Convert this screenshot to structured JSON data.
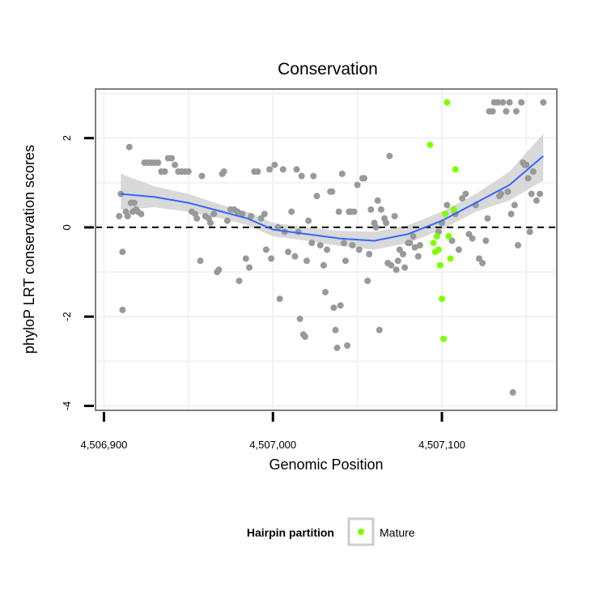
{
  "chart_data": {
    "type": "scatter",
    "title": "Conservation",
    "xlabel": "Genomic Position",
    "ylabel": "phyloP LRT conservation scores",
    "xlim": [
      4506895,
      4507168
    ],
    "ylim": [
      -4.1,
      3.1
    ],
    "x_ticks": [
      4506900,
      4507000,
      4507100
    ],
    "x_tick_labels": [
      "4,506,900",
      "4,507,000",
      "4,507,100"
    ],
    "y_ticks": [
      2,
      0,
      -2,
      -4
    ],
    "y_tick_labels": [
      "2",
      "0",
      "-2",
      "-4"
    ],
    "grid": true,
    "reference_line": {
      "y": 0,
      "style": "dashed",
      "color": "#000000"
    },
    "legend": {
      "title": "Hairpin partition",
      "placement": "bottom",
      "entries": [
        {
          "label": "Mature",
          "color": "#7fff00"
        }
      ]
    },
    "colors": {
      "background_points": "#999999",
      "mature": "#7fff00",
      "smooth": "#3366ff",
      "ribbon": "#cccccc"
    },
    "series": [
      {
        "color": "#999999",
        "points": [
          [
            4506910,
            0.75
          ],
          [
            4506911,
            -1.85
          ],
          [
            4506911,
            -0.55
          ],
          [
            4506909,
            0.25
          ],
          [
            4506913,
            0.35
          ],
          [
            4506914,
            0.25
          ],
          [
            4506915,
            1.8
          ],
          [
            4506916,
            0.55
          ],
          [
            4506917,
            0.35
          ],
          [
            4506918,
            0.55
          ],
          [
            4506919,
            0.4
          ],
          [
            4506920,
            0.35
          ],
          [
            4506922,
            0.3
          ],
          [
            4506924,
            1.45
          ],
          [
            4506926,
            1.45
          ],
          [
            4506928,
            1.45
          ],
          [
            4506930,
            1.45
          ],
          [
            4506932,
            1.45
          ],
          [
            4506934,
            1.25
          ],
          [
            4506936,
            1.25
          ],
          [
            4506938,
            1.55
          ],
          [
            4506940,
            1.55
          ],
          [
            4506942,
            1.4
          ],
          [
            4506944,
            1.25
          ],
          [
            4506946,
            1.25
          ],
          [
            4506948,
            1.25
          ],
          [
            4506950,
            1.25
          ],
          [
            4506952,
            0.35
          ],
          [
            4506954,
            0.3
          ],
          [
            4506955,
            0.2
          ],
          [
            4506957,
            -0.75
          ],
          [
            4506958,
            1.15
          ],
          [
            4506960,
            0.25
          ],
          [
            4506962,
            0.2
          ],
          [
            4506963,
            0.1
          ],
          [
            4506965,
            0.3
          ],
          [
            4506967,
            -1.0
          ],
          [
            4506968,
            -0.95
          ],
          [
            4506970,
            1.2
          ],
          [
            4506971,
            1.25
          ],
          [
            4506973,
            0.15
          ],
          [
            4506975,
            0.4
          ],
          [
            4506977,
            0.4
          ],
          [
            4506979,
            0.35
          ],
          [
            4506980,
            -1.2
          ],
          [
            4506982,
            0.3
          ],
          [
            4506984,
            -0.7
          ],
          [
            4506986,
            -0.9
          ],
          [
            4506987,
            0.25
          ],
          [
            4506989,
            1.25
          ],
          [
            4506991,
            1.25
          ],
          [
            4506993,
            0.2
          ],
          [
            4506995,
            0.3
          ],
          [
            4506996,
            -0.5
          ],
          [
            4506998,
            1.3
          ],
          [
            4506999,
            -0.7
          ],
          [
            4507001,
            1.4
          ],
          [
            4507003,
            0.0
          ],
          [
            4507004,
            -1.6
          ],
          [
            4507006,
            1.3
          ],
          [
            4507007,
            -0.1
          ],
          [
            4507009,
            -0.55
          ],
          [
            4507011,
            0.35
          ],
          [
            4507013,
            -0.65
          ],
          [
            4507014,
            1.3
          ],
          [
            4507015,
            -0.1
          ],
          [
            4507016,
            -2.05
          ],
          [
            4507017,
            1.15
          ],
          [
            4507018,
            -2.4
          ],
          [
            4507019,
            -2.45
          ],
          [
            4507020,
            -0.75
          ],
          [
            4507021,
            0.15
          ],
          [
            4507023,
            -0.35
          ],
          [
            4507024,
            1.15
          ],
          [
            4507026,
            0.7
          ],
          [
            4507028,
            -0.4
          ],
          [
            4507030,
            -0.85
          ],
          [
            4507031,
            -1.45
          ],
          [
            4507032,
            -0.5
          ],
          [
            4507034,
            0.8
          ],
          [
            4507035,
            0.8
          ],
          [
            4507036,
            -1.8
          ],
          [
            4507037,
            -2.3
          ],
          [
            4507038,
            -2.7
          ],
          [
            4507039,
            0.35
          ],
          [
            4507040,
            -1.75
          ],
          [
            4507041,
            1.2
          ],
          [
            4507042,
            -0.35
          ],
          [
            4507043,
            -0.75
          ],
          [
            4507044,
            -2.65
          ],
          [
            4507045,
            0.35
          ],
          [
            4507046,
            0.35
          ],
          [
            4507047,
            -0.4
          ],
          [
            4507048,
            0.35
          ],
          [
            4507050,
            0.95
          ],
          [
            4507051,
            -0.5
          ],
          [
            4507053,
            1.1
          ],
          [
            4507054,
            1.1
          ],
          [
            4507056,
            -1.2
          ],
          [
            4507057,
            -0.6
          ],
          [
            4507058,
            0.4
          ],
          [
            4507060,
            0.1
          ],
          [
            4507061,
            0.0
          ],
          [
            4507062,
            0.6
          ],
          [
            4507063,
            -2.3
          ],
          [
            4507064,
            0.4
          ],
          [
            4507066,
            0.2
          ],
          [
            4507067,
            0.1
          ],
          [
            4507068,
            -0.8
          ],
          [
            4507069,
            1.6
          ],
          [
            4507070,
            -0.85
          ],
          [
            4507072,
            0.25
          ],
          [
            4507073,
            -0.95
          ],
          [
            4507074,
            -0.75
          ],
          [
            4507075,
            -0.5
          ],
          [
            4507077,
            -0.6
          ],
          [
            4507078,
            -0.9
          ],
          [
            4507080,
            -0.35
          ],
          [
            4507081,
            -0.35
          ],
          [
            4507083,
            -0.2
          ],
          [
            4507084,
            -0.45
          ],
          [
            4507086,
            -0.65
          ],
          [
            4507087,
            -0.4
          ],
          [
            4507098,
            -0.1
          ],
          [
            4507100,
            0.1
          ],
          [
            4507103,
            0.5
          ],
          [
            4507106,
            -0.3
          ],
          [
            4507108,
            0.3
          ],
          [
            4507110,
            -0.5
          ],
          [
            4507112,
            0.65
          ],
          [
            4507114,
            0.75
          ],
          [
            4507116,
            -0.15
          ],
          [
            4507118,
            -0.25
          ],
          [
            4507120,
            0.5
          ],
          [
            4507122,
            -0.7
          ],
          [
            4507124,
            -0.8
          ],
          [
            4507126,
            -0.3
          ],
          [
            4507127,
            0.2
          ],
          [
            4507128,
            2.6
          ],
          [
            4507130,
            2.6
          ],
          [
            4507131,
            2.8
          ],
          [
            4507133,
            2.8
          ],
          [
            4507134,
            0.7
          ],
          [
            4507135,
            0.75
          ],
          [
            4507136,
            2.8
          ],
          [
            4507138,
            2.6
          ],
          [
            4507139,
            0.8
          ],
          [
            4507140,
            2.8
          ],
          [
            4507141,
            0.3
          ],
          [
            4507142,
            -3.7
          ],
          [
            4507143,
            0.5
          ],
          [
            4507144,
            2.6
          ],
          [
            4507145,
            -0.4
          ],
          [
            4507147,
            2.8
          ],
          [
            4507148,
            1.45
          ],
          [
            4507149,
            1.4
          ],
          [
            4507150,
            1.4
          ],
          [
            4507151,
            1.1
          ],
          [
            4507152,
            -0.1
          ],
          [
            4507153,
            0.75
          ],
          [
            4507154,
            1.25
          ],
          [
            4507156,
            0.6
          ],
          [
            4507158,
            0.75
          ],
          [
            4507160,
            2.8
          ]
        ]
      },
      {
        "name": "Mature",
        "color": "#7fff00",
        "points": [
          [
            4507093,
            1.85
          ],
          [
            4507095,
            -0.35
          ],
          [
            4507096,
            -0.55
          ],
          [
            4507097,
            -0.2
          ],
          [
            4507098,
            -0.5
          ],
          [
            4507099,
            -0.85
          ],
          [
            4507100,
            -1.6
          ],
          [
            4507101,
            -2.5
          ],
          [
            4507102,
            0.3
          ],
          [
            4507103,
            2.8
          ],
          [
            4507104,
            -0.2
          ],
          [
            4507105,
            -0.7
          ],
          [
            4507107,
            0.4
          ],
          [
            4507108,
            1.3
          ]
        ]
      }
    ],
    "smooth": {
      "x": [
        4506910,
        4506930,
        4506950,
        4506970,
        4506985,
        4507000,
        4507020,
        4507040,
        4507060,
        4507080,
        4507100,
        4507120,
        4507140,
        4507160
      ],
      "y": [
        0.75,
        0.68,
        0.55,
        0.35,
        0.2,
        -0.05,
        -0.15,
        -0.25,
        -0.3,
        -0.15,
        0.15,
        0.55,
        0.95,
        1.6
      ],
      "lower": [
        0.4,
        0.45,
        0.35,
        0.2,
        0.05,
        -0.2,
        -0.3,
        -0.42,
        -0.5,
        -0.35,
        -0.05,
        0.35,
        0.6,
        1.05
      ],
      "upper": [
        1.2,
        0.92,
        0.75,
        0.5,
        0.35,
        0.1,
        0.0,
        -0.08,
        -0.1,
        0.05,
        0.35,
        0.75,
        1.25,
        2.1
      ]
    }
  }
}
